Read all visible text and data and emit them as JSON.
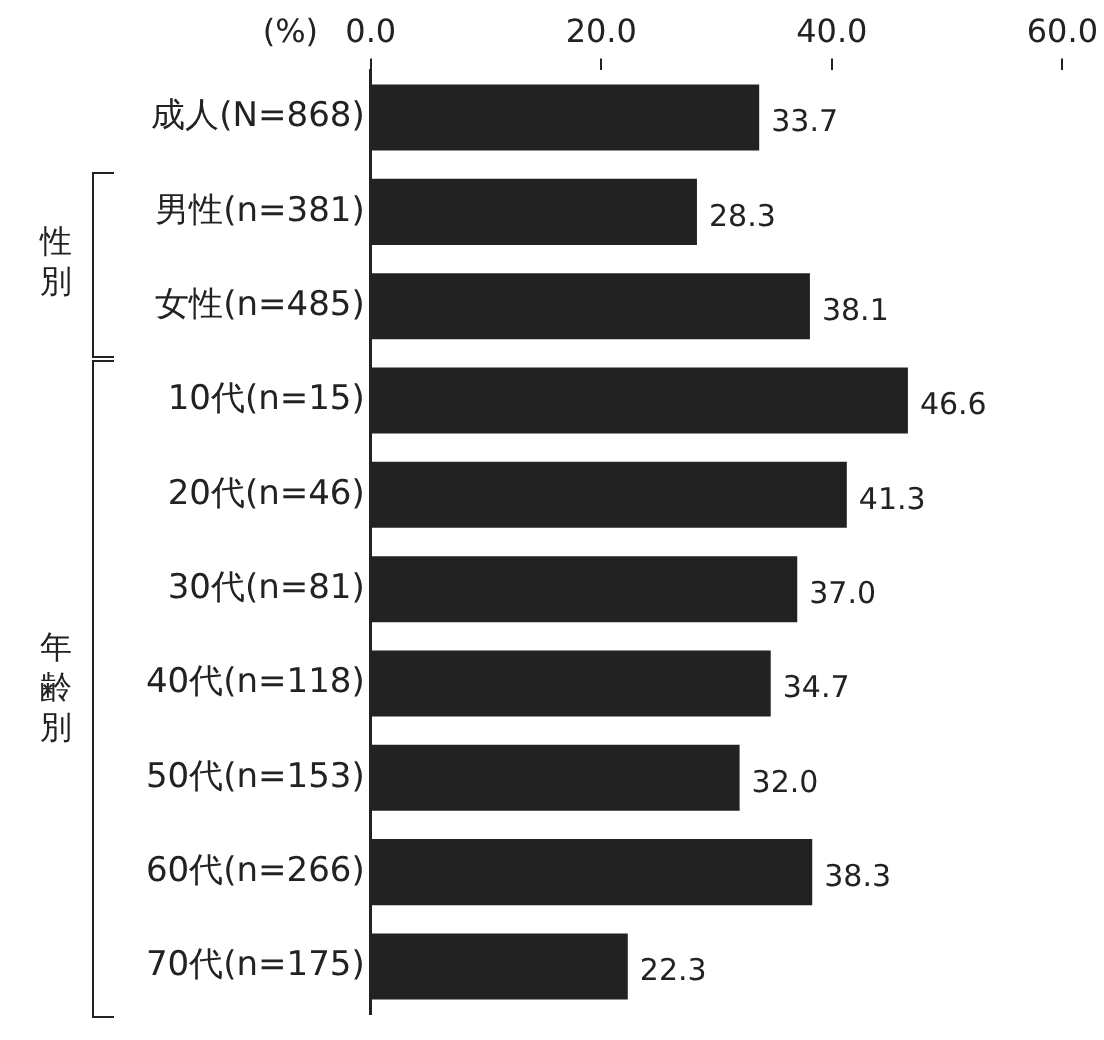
{
  "chart_data": {
    "type": "bar",
    "orientation": "horizontal",
    "xlabel": "(%)",
    "categories": [
      "成人(N=868)",
      "男性(n=381)",
      "女性(n=485)",
      "10代(n=15)",
      "20代(n=46)",
      "30代(n=81)",
      "40代(n=118)",
      "50代(n=153)",
      "60代(n=266)",
      "70代(n=175)"
    ],
    "values": [
      33.7,
      28.3,
      38.1,
      46.6,
      41.3,
      37.0,
      34.7,
      32.0,
      38.3,
      22.3
    ],
    "value_labels": [
      "33.7",
      "28.3",
      "38.1",
      "46.6",
      "41.3",
      "37.0",
      "34.7",
      "32.0",
      "38.3",
      "22.3"
    ],
    "color": "#222222",
    "xlim": [
      0,
      60
    ],
    "xticks": [
      {
        "value": 0,
        "label": "0.0"
      },
      {
        "value": 20,
        "label": "20.0"
      },
      {
        "value": 40,
        "label": "40.0"
      },
      {
        "value": 60,
        "label": "60.0"
      }
    ],
    "grid": false,
    "legend": false,
    "annotations": [
      "性別",
      "年齢別"
    ]
  }
}
